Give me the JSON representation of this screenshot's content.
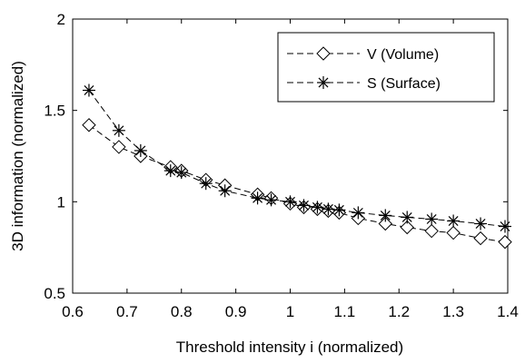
{
  "chart_data": {
    "type": "line",
    "title": "",
    "xlabel": "Threshold intensity i (normalized)",
    "ylabel": "3D information (normalized)",
    "xlim": [
      0.6,
      1.4
    ],
    "ylim": [
      0.5,
      2
    ],
    "xticks": [
      "0.6",
      "0.7",
      "0.8",
      "0.9",
      "1",
      "1.1",
      "1.2",
      "1.3",
      "1.4"
    ],
    "yticks": [
      "0.5",
      "1",
      "1.5",
      "2"
    ],
    "grid": false,
    "legend_position": "top-right",
    "series": [
      {
        "name": "V (Volume)",
        "marker": "diamond",
        "line": "dashed",
        "color": "#000000",
        "x": [
          0.63,
          0.685,
          0.725,
          0.78,
          0.8,
          0.845,
          0.88,
          0.94,
          0.965,
          1.0,
          1.025,
          1.05,
          1.07,
          1.09,
          1.125,
          1.175,
          1.215,
          1.26,
          1.3,
          1.35,
          1.395
        ],
        "y": [
          1.42,
          1.3,
          1.25,
          1.19,
          1.17,
          1.12,
          1.09,
          1.04,
          1.02,
          0.99,
          0.97,
          0.96,
          0.95,
          0.94,
          0.91,
          0.88,
          0.86,
          0.84,
          0.83,
          0.8,
          0.78
        ]
      },
      {
        "name": "S (Surface)",
        "marker": "asterisk",
        "line": "dashed",
        "color": "#000000",
        "x": [
          0.63,
          0.685,
          0.725,
          0.78,
          0.8,
          0.845,
          0.88,
          0.94,
          0.965,
          1.0,
          1.025,
          1.05,
          1.07,
          1.09,
          1.125,
          1.175,
          1.215,
          1.26,
          1.3,
          1.35,
          1.395
        ],
        "y": [
          1.61,
          1.39,
          1.28,
          1.17,
          1.16,
          1.1,
          1.06,
          1.02,
          1.01,
          1.0,
          0.98,
          0.97,
          0.96,
          0.955,
          0.94,
          0.925,
          0.915,
          0.905,
          0.895,
          0.88,
          0.865
        ]
      }
    ]
  }
}
